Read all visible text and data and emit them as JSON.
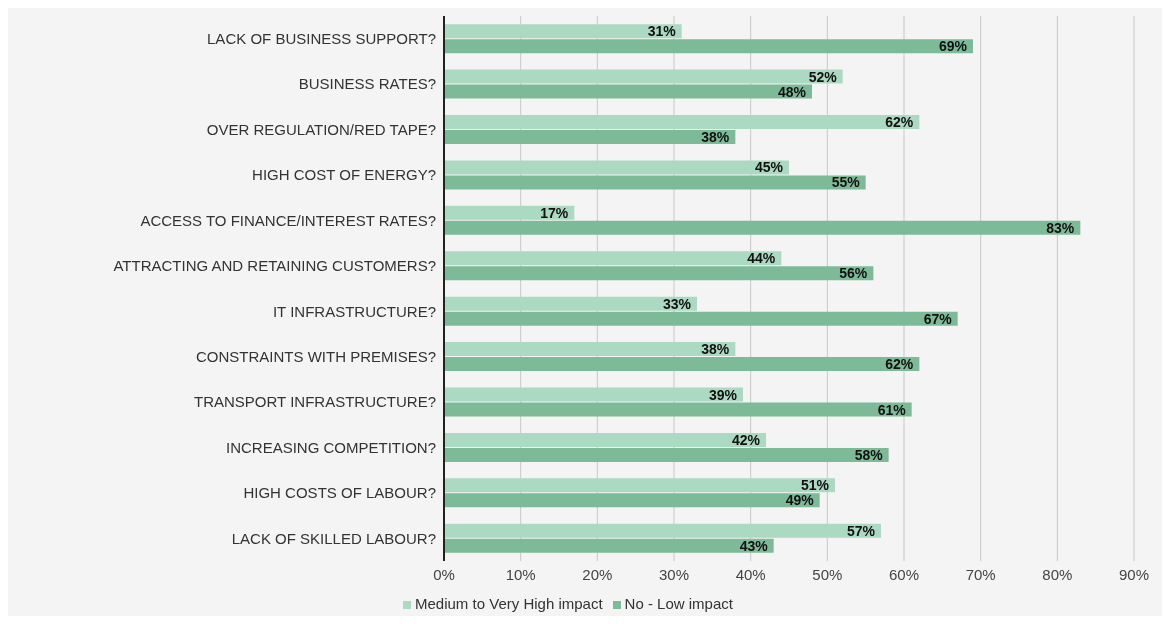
{
  "chart_data": {
    "type": "bar",
    "orientation": "horizontal",
    "categories": [
      "LACK OF BUSINESS SUPPORT?",
      "BUSINESS RATES?",
      "OVER REGULATION/RED TAPE?",
      "HIGH COST OF ENERGY?",
      "ACCESS TO FINANCE/INTEREST RATES?",
      "ATTRACTING AND RETAINING CUSTOMERS?",
      "IT INFRASTRUCTURE?",
      "CONSTRAINTS WITH PREMISES?",
      "TRANSPORT INFRASTRUCTURE?",
      "INCREASING COMPETITION?",
      "HIGH COSTS OF LABOUR?",
      "LACK OF SKILLED LABOUR?"
    ],
    "series": [
      {
        "name": "Medium to Very High impact",
        "color": "#acd9c1",
        "values": [
          31,
          52,
          62,
          45,
          17,
          44,
          33,
          38,
          39,
          42,
          51,
          57
        ],
        "value_labels": [
          "31%",
          "52%",
          "62%",
          "45%",
          "17%",
          "44%",
          "33%",
          "38%",
          "39%",
          "42%",
          "51%",
          "57%"
        ]
      },
      {
        "name": "No - Low impact",
        "color": "#7dbb98",
        "values": [
          69,
          48,
          38,
          55,
          83,
          56,
          67,
          62,
          61,
          58,
          49,
          43
        ],
        "value_labels": [
          "69%",
          "48%",
          "38%",
          "55%",
          "83%",
          "56%",
          "67%",
          "62%",
          "61%",
          "58%",
          "49%",
          "43%"
        ]
      }
    ],
    "xlim": [
      0,
      90
    ],
    "xticks": [
      {
        "value": 0,
        "label": "0%"
      },
      {
        "value": 10,
        "label": "10%"
      },
      {
        "value": 20,
        "label": "20%"
      },
      {
        "value": 30,
        "label": "30%"
      },
      {
        "value": 40,
        "label": "40%"
      },
      {
        "value": 50,
        "label": "50%"
      },
      {
        "value": 60,
        "label": "60%"
      },
      {
        "value": 70,
        "label": "70%"
      },
      {
        "value": 80,
        "label": "80%"
      },
      {
        "value": 90,
        "label": "90%"
      }
    ],
    "grid": "x",
    "legend": "bottom"
  }
}
